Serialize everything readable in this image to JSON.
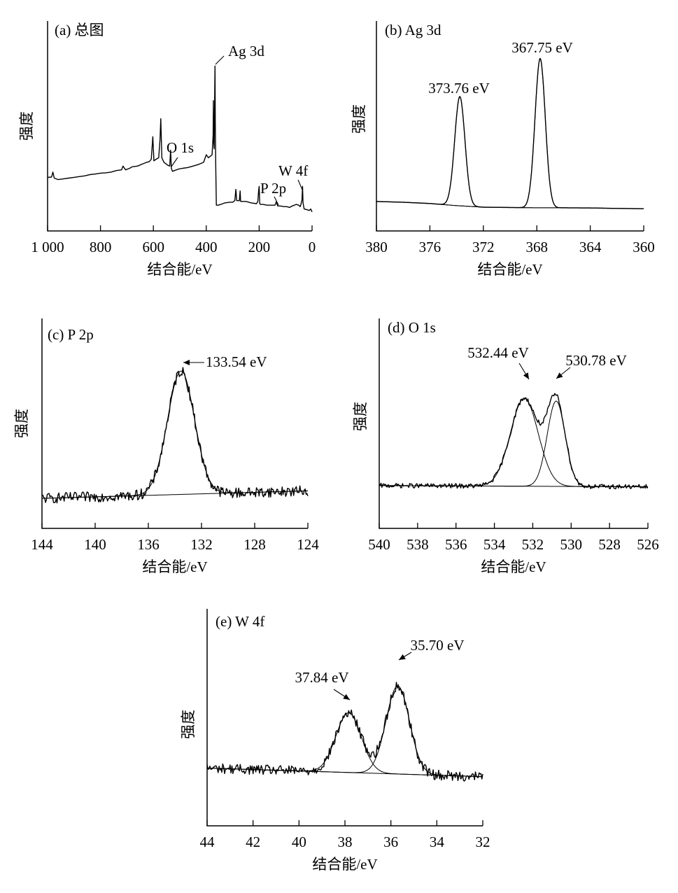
{
  "chart_data": [
    {
      "type": "line",
      "panel": "a",
      "title": "(a)  总图",
      "xlabel": "结合能/eV",
      "ylabel": "强度",
      "xlim": [
        1000,
        0
      ],
      "xticks": [
        1000,
        800,
        600,
        400,
        200,
        0
      ],
      "xtick_labels": [
        "1 000",
        "800",
        "600",
        "400",
        "200",
        "0"
      ],
      "ylim": [
        0,
        10
      ],
      "series": [
        {
          "kind": "measured",
          "x": [
            1000,
            985,
            980,
            975,
            960,
            940,
            920,
            900,
            880,
            860,
            840,
            820,
            800,
            780,
            760,
            740,
            720,
            715,
            705,
            690,
            680,
            660,
            640,
            625,
            615,
            608,
            602,
            598,
            590,
            580,
            575,
            572,
            568,
            560,
            545,
            538,
            535,
            532,
            528,
            520,
            505,
            490,
            470,
            450,
            430,
            410,
            400,
            392,
            385,
            378,
            374,
            373,
            372,
            370,
            368,
            367,
            366,
            364,
            362,
            355,
            345,
            330,
            310,
            300,
            292,
            288,
            285,
            275,
            272,
            270,
            265,
            250,
            230,
            210,
            205,
            202,
            200,
            198,
            195,
            185,
            170,
            160,
            150,
            140,
            135,
            133,
            130,
            120,
            105,
            95,
            85,
            75,
            60,
            50,
            45,
            42,
            38,
            36,
            34,
            30,
            20,
            10,
            5,
            0
          ],
          "y": [
            2.4,
            2.42,
            2.75,
            2.35,
            2.25,
            2.3,
            2.35,
            2.4,
            2.45,
            2.5,
            2.58,
            2.62,
            2.68,
            2.7,
            2.75,
            2.85,
            2.9,
            3.15,
            2.9,
            3.0,
            3.1,
            3.15,
            3.3,
            3.4,
            3.45,
            3.6,
            5.1,
            3.5,
            3.6,
            3.7,
            4.9,
            6.3,
            3.7,
            3.4,
            3.2,
            3.15,
            4.2,
            3.0,
            2.8,
            2.85,
            2.95,
            3.0,
            3.05,
            3.15,
            3.25,
            3.4,
            3.9,
            3.7,
            3.8,
            3.9,
            5.2,
            7.5,
            4.8,
            4.3,
            8.2,
            9.8,
            6.0,
            3.0,
            0.55,
            0.55,
            0.6,
            0.7,
            0.75,
            0.75,
            0.85,
            1.6,
            0.85,
            0.85,
            1.5,
            0.8,
            0.8,
            0.8,
            0.7,
            0.65,
            0.8,
            1.5,
            1.8,
            0.65,
            0.6,
            0.6,
            0.55,
            0.55,
            0.55,
            0.55,
            0.8,
            0.65,
            0.5,
            0.5,
            0.45,
            0.45,
            0.4,
            0.5,
            0.6,
            0.55,
            0.45,
            0.6,
            0.9,
            1.8,
            0.7,
            0.3,
            0.25,
            0.2,
            0.3,
            0.1
          ]
        }
      ],
      "annotations": [
        {
          "text": "Ag 3d",
          "x": 368,
          "y": 9.8
        },
        {
          "text": "O 1s",
          "x": 531,
          "y": 4.3
        },
        {
          "text": "P 2p",
          "x": 133,
          "y": 0.9
        },
        {
          "text": "W 4f",
          "x": 36,
          "y": 1.9
        }
      ]
    },
    {
      "type": "line",
      "panel": "b",
      "title": "(b)  Ag 3d",
      "xlabel": "结合能/eV",
      "ylabel": "强度",
      "xlim": [
        380,
        360
      ],
      "xticks": [
        380,
        376,
        372,
        368,
        364,
        360
      ],
      "xtick_labels": [
        "380",
        "376",
        "372",
        "368",
        "364",
        "360"
      ],
      "ylim": [
        0,
        10
      ],
      "baseline": {
        "x": [
          380,
          378,
          376,
          374,
          372,
          370,
          368,
          366,
          364,
          362,
          360
        ],
        "y": [
          0.55,
          0.5,
          0.42,
          0.28,
          0.18,
          0.16,
          0.14,
          0.14,
          0.13,
          0.1,
          0.08
        ]
      },
      "peaks": [
        {
          "center": 373.76,
          "height": 7.1,
          "fwhm": 0.9,
          "label": "373.76 eV"
        },
        {
          "center": 367.75,
          "height": 9.7,
          "fwhm": 0.9,
          "label": "367.75 eV"
        }
      ]
    },
    {
      "type": "line",
      "panel": "c",
      "title": "(c)  P 2p",
      "xlabel": "结合能/eV",
      "ylabel": "强度",
      "xlim": [
        144,
        124
      ],
      "xticks": [
        144,
        140,
        136,
        132,
        128,
        124
      ],
      "xtick_labels": [
        "144",
        "140",
        "136",
        "132",
        "128",
        "124"
      ],
      "ylim": [
        0,
        10
      ],
      "baseline": {
        "x": [
          144,
          124
        ],
        "y": [
          0.6,
          1.1
        ]
      },
      "peaks": [
        {
          "center": 133.54,
          "height": 8.2,
          "fwhm": 2.4,
          "label": "133.54 eV"
        }
      ],
      "noise": 0.35
    },
    {
      "type": "line",
      "panel": "d",
      "title": "(d)  O 1s",
      "xlabel": "结合能/eV",
      "ylabel": "强度",
      "xlim": [
        540,
        526
      ],
      "xticks": [
        540,
        538,
        536,
        534,
        532,
        530,
        528,
        526
      ],
      "xtick_labels": [
        "540",
        "538",
        "536",
        "534",
        "532",
        "530",
        "528",
        "526"
      ],
      "ylim": [
        0,
        10
      ],
      "baseline": {
        "x": [
          540,
          526
        ],
        "y": [
          1.0,
          0.9
        ]
      },
      "peaks": [
        {
          "center": 532.44,
          "height": 6.9,
          "fwhm": 1.7,
          "label": "532.44 eV"
        },
        {
          "center": 530.78,
          "height": 6.7,
          "fwhm": 1.1,
          "label": "530.78 eV"
        }
      ],
      "noise": 0.18
    },
    {
      "type": "line",
      "panel": "e",
      "title": "(e)  W 4f",
      "xlabel": "结合能/eV",
      "ylabel": "强度",
      "xlim": [
        44,
        32
      ],
      "xticks": [
        44,
        42,
        40,
        38,
        36,
        34,
        32
      ],
      "xtick_labels": [
        "44",
        "42",
        "40",
        "38",
        "36",
        "34",
        "32"
      ],
      "ylim": [
        0,
        10
      ],
      "baseline": {
        "x": [
          44,
          32
        ],
        "y": [
          1.5,
          0.9
        ]
      },
      "peaks": [
        {
          "center": 37.84,
          "height": 4.2,
          "fwhm": 1.3,
          "label": "37.84 eV"
        },
        {
          "center": 35.7,
          "height": 6.2,
          "fwhm": 1.2,
          "label": "35.70 eV"
        }
      ],
      "noise": 0.35
    }
  ]
}
